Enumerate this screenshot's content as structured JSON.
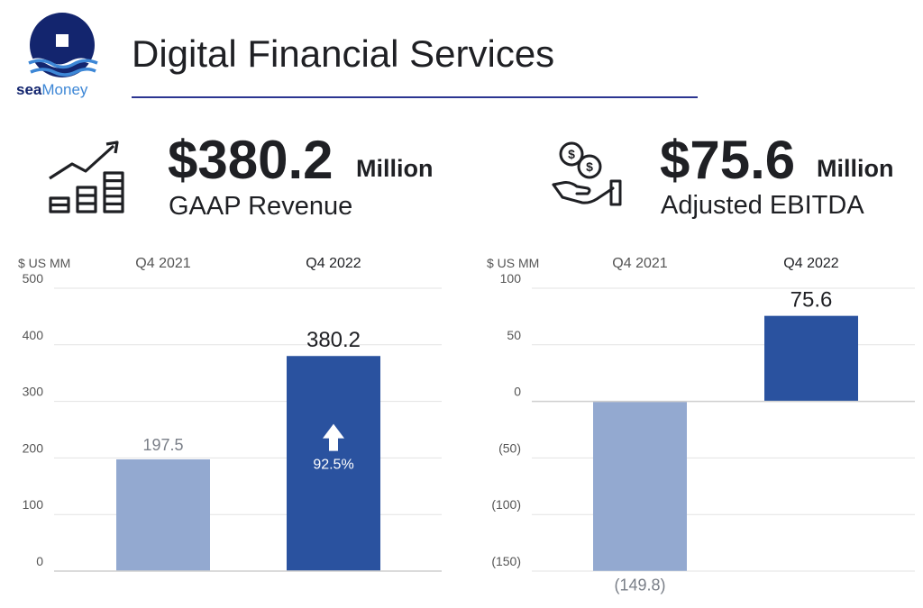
{
  "brand": {
    "logo_word1": "sea",
    "logo_word2": "Money",
    "colors": {
      "navy": "#13256e",
      "light_blue": "#3d87d6"
    }
  },
  "page": {
    "title": "Digital Financial Services"
  },
  "kpis": [
    {
      "icon": "bar-chart-growth-icon",
      "value": "$380.2",
      "unit": "Million",
      "label": "GAAP Revenue"
    },
    {
      "icon": "hand-with-coins-icon",
      "value": "$75.6",
      "unit": "Million",
      "label": "Adjusted EBITDA"
    }
  ],
  "chart_data": [
    {
      "type": "bar",
      "unit_label": "$ US MM",
      "categories": [
        "Q4 2021",
        "Q4 2022"
      ],
      "values": [
        197.5,
        380.2
      ],
      "data_labels": [
        "197.5",
        "380.2"
      ],
      "annotation": {
        "category": "Q4 2022",
        "text": "92.5%",
        "icon": "up-arrow-icon"
      },
      "ylim": [
        0,
        500
      ],
      "yticks": [
        0,
        100,
        200,
        300,
        400,
        500
      ],
      "ytick_labels": [
        "0",
        "100",
        "200",
        "300",
        "400",
        "500"
      ],
      "grid": true,
      "colors": [
        "#93a9d0",
        "#2a529f"
      ]
    },
    {
      "type": "bar",
      "unit_label": "$ US MM",
      "categories": [
        "Q4 2021",
        "Q4 2022"
      ],
      "values": [
        -149.8,
        75.6
      ],
      "data_labels": [
        "(149.8)",
        "75.6"
      ],
      "ylim": [
        -150,
        100
      ],
      "yticks": [
        -150,
        -100,
        -50,
        0,
        50,
        100
      ],
      "ytick_labels": [
        "(150)",
        "(100)",
        "(50)",
        "0",
        "50",
        "100"
      ],
      "grid": true,
      "colors": [
        "#93a9d0",
        "#2a529f"
      ]
    }
  ]
}
